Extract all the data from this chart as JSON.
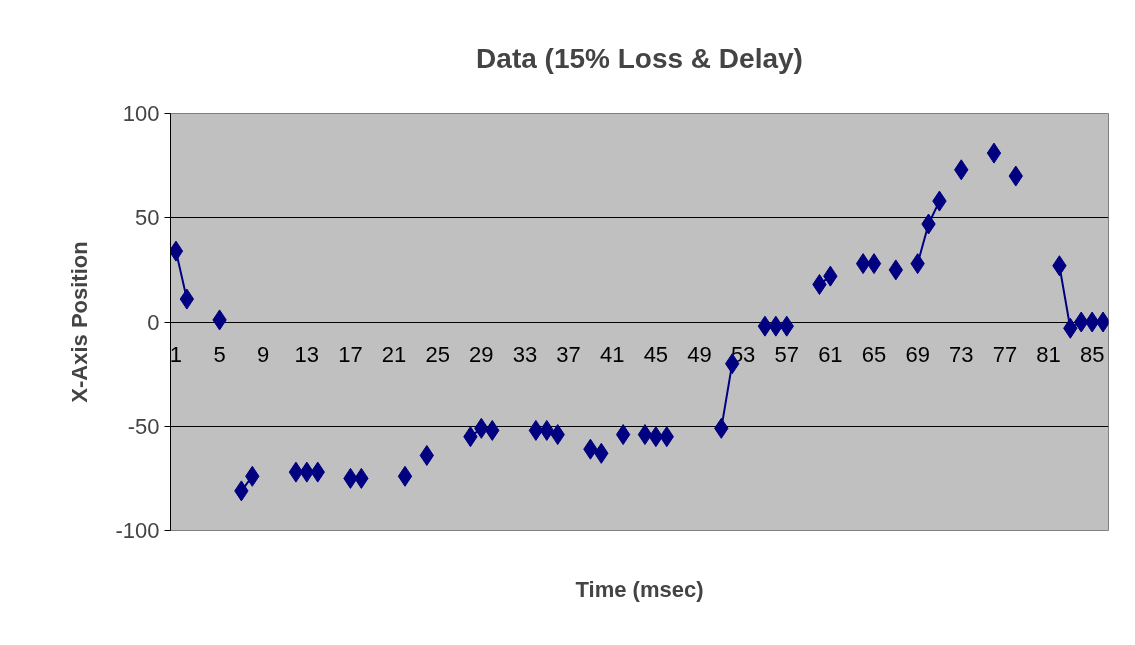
{
  "chart_data": {
    "type": "line",
    "title": "Data (15% Loss & Delay)",
    "xlabel": "Time (msec)",
    "ylabel": "X-Axis Position",
    "categories": [
      "1",
      null,
      null,
      null,
      "5",
      null,
      null,
      null,
      "9",
      null,
      null,
      null,
      "13",
      null,
      null,
      null,
      "17",
      null,
      null,
      null,
      "21",
      null,
      null,
      null,
      "25",
      null,
      null,
      null,
      "29",
      null,
      null,
      null,
      "33",
      null,
      null,
      null,
      "37",
      null,
      null,
      null,
      "41",
      null,
      null,
      null,
      "45",
      null,
      null,
      null,
      "49",
      null,
      null,
      null,
      "53",
      null,
      null,
      null,
      "57",
      null,
      null,
      null,
      "61",
      null,
      null,
      null,
      "65",
      null,
      null,
      null,
      "69",
      null,
      null,
      null,
      "73",
      null,
      null,
      null,
      "77",
      null,
      null,
      null,
      "81",
      null,
      null,
      null,
      "85",
      null
    ],
    "series": [
      {
        "color": "#000080",
        "values": [
          34,
          11,
          null,
          null,
          1,
          null,
          -81,
          -74,
          null,
          null,
          null,
          -72,
          -72,
          -72,
          null,
          null,
          -75,
          -75,
          null,
          null,
          null,
          -74,
          null,
          -64,
          null,
          null,
          null,
          -55,
          -51,
          -52,
          null,
          null,
          null,
          -52,
          -52,
          -54,
          null,
          null,
          -61,
          -63,
          null,
          -54,
          null,
          -54,
          -55,
          -55,
          null,
          null,
          null,
          null,
          -51,
          -20,
          null,
          null,
          -2,
          -2,
          -2,
          null,
          null,
          18,
          22,
          null,
          null,
          28,
          28,
          null,
          25,
          null,
          28,
          47,
          58,
          null,
          73,
          null,
          null,
          81,
          null,
          70,
          null,
          null,
          null,
          27,
          -3,
          0,
          0,
          0
        ]
      }
    ],
    "ylim": [
      -100,
      100
    ],
    "yticks": [
      -100,
      -50,
      0,
      50,
      100
    ],
    "grid": "y",
    "marker": "diamond",
    "line_style": "solid"
  }
}
